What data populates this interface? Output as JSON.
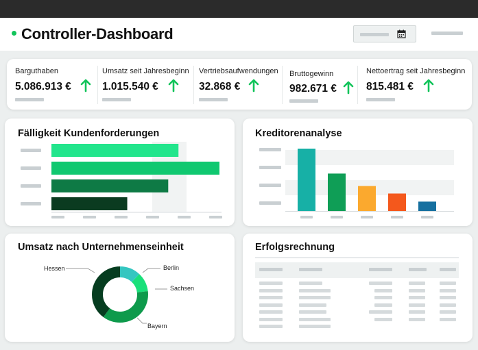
{
  "header": {
    "title": "Controller-Dashboard",
    "status_color": "#11c45a",
    "calendar_icon": "calendar-icon"
  },
  "kpis": [
    {
      "label": "Barguthaben",
      "value": "5.086.913 €",
      "trend": "up"
    },
    {
      "label": "Umsatz seit Jahresbeginn",
      "value": "1.015.540 €",
      "trend": "up"
    },
    {
      "label": "Vertriebsaufwendungen",
      "value": "32.868 €",
      "trend": "up"
    },
    {
      "label": "Bruttogewinn",
      "value": "982.671 €",
      "trend": "up"
    },
    {
      "label": "Nettoertrag seit Jahresbeginn",
      "value": "815.481 €",
      "trend": "up"
    }
  ],
  "colors": {
    "trend_up": "#11c45a",
    "receivables": [
      "#22e58c",
      "#10c870",
      "#0e7a45",
      "#0b3b20"
    ],
    "creditors": [
      "#17b0a6",
      "#0f9e56",
      "#fba92e",
      "#f4581c",
      "#1670a0"
    ],
    "donut": [
      "#34c6c0",
      "#19e07a",
      "#0e9a4c",
      "#063d20"
    ]
  },
  "receivables": {
    "title": "Fälligkeit Kundenforderungen",
    "values": [
      62,
      82,
      57,
      37
    ]
  },
  "creditors": {
    "title": "Kreditorenanalyse",
    "values": [
      100,
      60,
      40,
      28,
      15
    ]
  },
  "revenue": {
    "title": "Umsatz nach Unternehmenseinheit",
    "segments": [
      {
        "name": "Berlin",
        "value": 12
      },
      {
        "name": "Sachsen",
        "value": 11
      },
      {
        "name": "Bayern",
        "value": 37
      },
      {
        "name": "Hessen",
        "value": 40
      }
    ]
  },
  "income": {
    "title": "Erfolgsrechnung"
  }
}
